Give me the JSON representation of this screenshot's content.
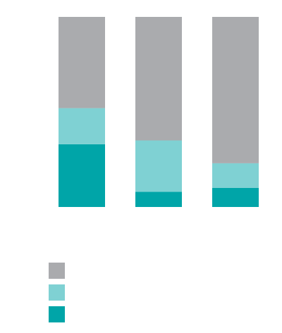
{
  "chart_data": {
    "type": "bar",
    "stacked": true,
    "normalized_to": 100,
    "categories": [
      "",
      "",
      ""
    ],
    "series": [
      {
        "values": [
          33,
          8,
          10
        ],
        "color": "#00a5a8"
      },
      {
        "values": [
          19,
          27,
          13
        ],
        "color": "#7fd1d3"
      },
      {
        "values": [
          48,
          65,
          77
        ],
        "color": "#aaabae"
      }
    ],
    "title": "",
    "xlabel": "",
    "ylabel": "",
    "ylim": [
      0,
      100
    ],
    "grid": false,
    "legend": "bottom-left"
  }
}
